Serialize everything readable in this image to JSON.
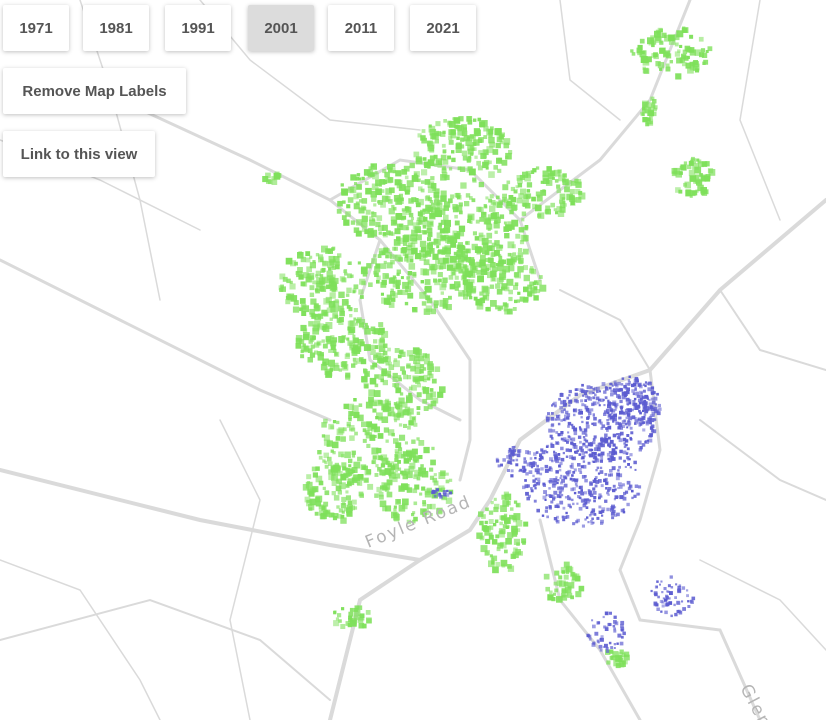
{
  "year_buttons": [
    {
      "label": "1971"
    },
    {
      "label": "1981"
    },
    {
      "label": "1991"
    },
    {
      "label": "2001",
      "selected": true
    },
    {
      "label": "2011"
    },
    {
      "label": "2021"
    }
  ],
  "controls": {
    "remove_labels": "Remove Map Labels",
    "link": "Link to this view"
  },
  "map_labels": {
    "road": "Foyle Road",
    "road_partial": "Glen"
  }
}
